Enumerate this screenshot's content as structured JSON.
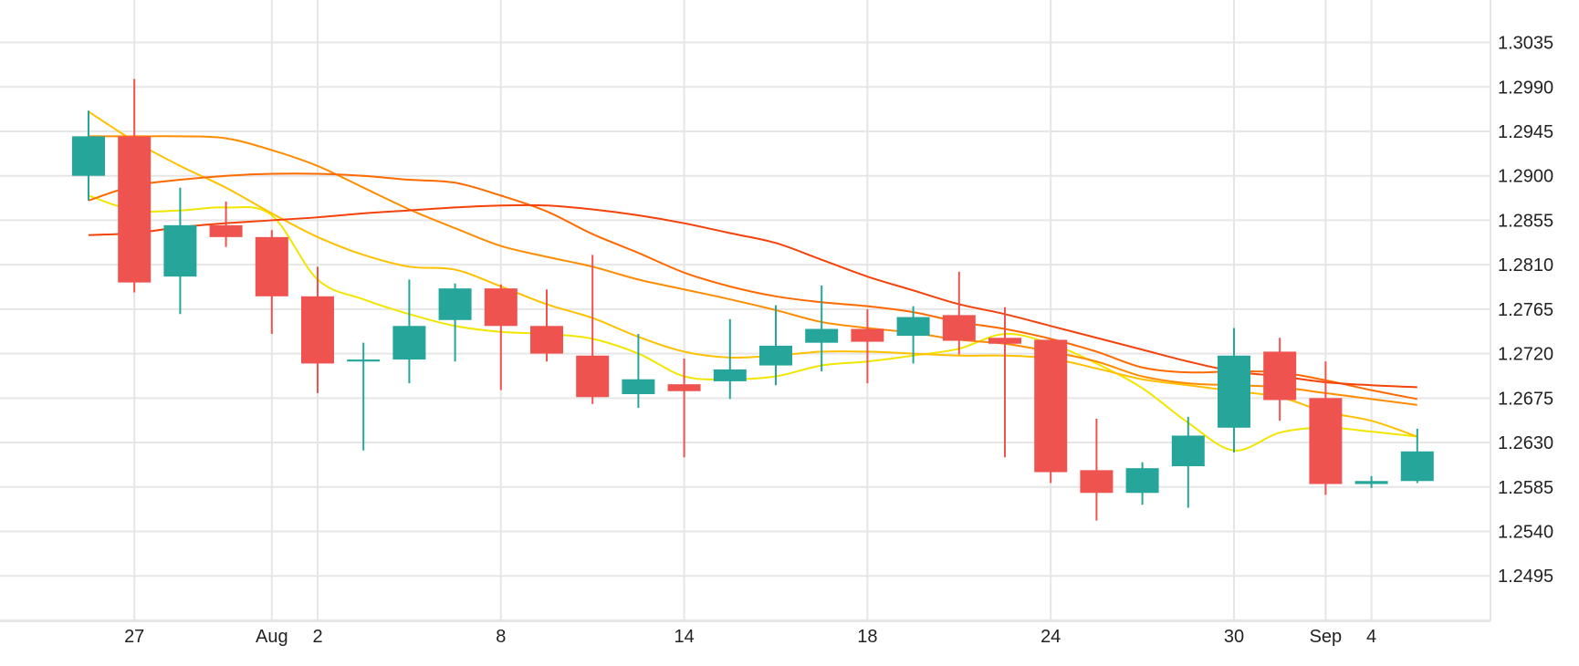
{
  "chart_data": {
    "type": "candlestick",
    "title": "",
    "xlabel": "",
    "ylabel": "",
    "ylim": [
      1.2449,
      1.3078
    ],
    "y_ticks": [
      "1.3035",
      "1.2990",
      "1.2945",
      "1.2900",
      "1.2855",
      "1.2810",
      "1.2765",
      "1.2720",
      "1.2675",
      "1.2630",
      "1.2585",
      "1.2540",
      "1.2495"
    ],
    "x_ticks": [
      {
        "index": 1,
        "label": "27"
      },
      {
        "index": 4,
        "label": "Aug"
      },
      {
        "index": 5,
        "label": "2"
      },
      {
        "index": 9,
        "label": "8"
      },
      {
        "index": 13,
        "label": "14"
      },
      {
        "index": 17,
        "label": "18"
      },
      {
        "index": 21,
        "label": "24"
      },
      {
        "index": 25,
        "label": "30"
      },
      {
        "index": 27,
        "label": "Sep"
      },
      {
        "index": 28,
        "label": "4"
      }
    ],
    "grid": true,
    "colors": {
      "up": "#26a69a",
      "down": "#ef5350"
    },
    "candles": [
      {
        "o": 1.29,
        "h": 1.2966,
        "l": 1.2875,
        "c": 1.294
      },
      {
        "o": 1.294,
        "h": 1.2998,
        "l": 1.2782,
        "c": 1.2792
      },
      {
        "o": 1.2798,
        "h": 1.2888,
        "l": 1.276,
        "c": 1.285
      },
      {
        "o": 1.285,
        "h": 1.2874,
        "l": 1.2828,
        "c": 1.2838
      },
      {
        "o": 1.2838,
        "h": 1.2845,
        "l": 1.274,
        "c": 1.2778
      },
      {
        "o": 1.2778,
        "h": 1.2808,
        "l": 1.268,
        "c": 1.271
      },
      {
        "o": 1.2712,
        "h": 1.2731,
        "l": 1.2622,
        "c": 1.2714
      },
      {
        "o": 1.2714,
        "h": 1.2795,
        "l": 1.269,
        "c": 1.2748
      },
      {
        "o": 1.2754,
        "h": 1.2791,
        "l": 1.2712,
        "c": 1.2786
      },
      {
        "o": 1.2786,
        "h": 1.279,
        "l": 1.2683,
        "c": 1.2748
      },
      {
        "o": 1.2748,
        "h": 1.2785,
        "l": 1.2712,
        "c": 1.272
      },
      {
        "o": 1.2718,
        "h": 1.282,
        "l": 1.2669,
        "c": 1.2676
      },
      {
        "o": 1.2679,
        "h": 1.274,
        "l": 1.2665,
        "c": 1.2694
      },
      {
        "o": 1.2689,
        "h": 1.2715,
        "l": 1.2615,
        "c": 1.2682
      },
      {
        "o": 1.2692,
        "h": 1.2755,
        "l": 1.2674,
        "c": 1.2704
      },
      {
        "o": 1.2708,
        "h": 1.2769,
        "l": 1.2688,
        "c": 1.2728
      },
      {
        "o": 1.2731,
        "h": 1.2789,
        "l": 1.2702,
        "c": 1.2745
      },
      {
        "o": 1.2745,
        "h": 1.2765,
        "l": 1.269,
        "c": 1.2732
      },
      {
        "o": 1.2738,
        "h": 1.2768,
        "l": 1.271,
        "c": 1.2757
      },
      {
        "o": 1.2759,
        "h": 1.2803,
        "l": 1.2719,
        "c": 1.2733
      },
      {
        "o": 1.2736,
        "h": 1.2767,
        "l": 1.2615,
        "c": 1.273
      },
      {
        "o": 1.2734,
        "h": 1.2734,
        "l": 1.2589,
        "c": 1.26
      },
      {
        "o": 1.2602,
        "h": 1.2654,
        "l": 1.2551,
        "c": 1.2579
      },
      {
        "o": 1.2579,
        "h": 1.261,
        "l": 1.2567,
        "c": 1.2604
      },
      {
        "o": 1.2606,
        "h": 1.2656,
        "l": 1.2564,
        "c": 1.2637
      },
      {
        "o": 1.2645,
        "h": 1.2746,
        "l": 1.262,
        "c": 1.2718
      },
      {
        "o": 1.2722,
        "h": 1.2736,
        "l": 1.2652,
        "c": 1.2673
      },
      {
        "o": 1.2675,
        "h": 1.2712,
        "l": 1.2577,
        "c": 1.2588
      },
      {
        "o": 1.2588,
        "h": 1.2596,
        "l": 1.2584,
        "c": 1.2591
      },
      {
        "o": 1.2591,
        "h": 1.2644,
        "l": 1.2589,
        "c": 1.2621
      }
    ],
    "series": [
      {
        "color": "#f2e600",
        "points": [
          [
            0,
            1.288
          ],
          [
            1,
            1.2865
          ],
          [
            2,
            1.2865
          ],
          [
            3,
            1.2868
          ],
          [
            4,
            1.286
          ],
          [
            5,
            1.2795
          ],
          [
            6,
            1.2775
          ],
          [
            7,
            1.276
          ],
          [
            8,
            1.2748
          ],
          [
            9,
            1.2742
          ],
          [
            10,
            1.274
          ],
          [
            11,
            1.2735
          ],
          [
            12,
            1.272
          ],
          [
            13,
            1.2697
          ],
          [
            14,
            1.2694
          ],
          [
            15,
            1.2697
          ],
          [
            16,
            1.2708
          ],
          [
            17,
            1.2712
          ],
          [
            18,
            1.2718
          ],
          [
            19,
            1.2725
          ],
          [
            20,
            1.274
          ],
          [
            21,
            1.273
          ],
          [
            22,
            1.271
          ],
          [
            23,
            1.2685
          ],
          [
            24,
            1.265
          ],
          [
            25,
            1.2622
          ],
          [
            26,
            1.264
          ],
          [
            27,
            1.2645
          ],
          [
            28,
            1.2641
          ],
          [
            29,
            1.2636
          ]
        ]
      },
      {
        "color": "#ffc000",
        "points": [
          [
            0,
            1.2965
          ],
          [
            1,
            1.2935
          ],
          [
            2,
            1.291
          ],
          [
            3,
            1.2888
          ],
          [
            4,
            1.2862
          ],
          [
            5,
            1.2838
          ],
          [
            6,
            1.282
          ],
          [
            7,
            1.2808
          ],
          [
            8,
            1.2805
          ],
          [
            9,
            1.2788
          ],
          [
            10,
            1.277
          ],
          [
            11,
            1.2756
          ],
          [
            12,
            1.2737
          ],
          [
            13,
            1.2722
          ],
          [
            14,
            1.2716
          ],
          [
            15,
            1.2718
          ],
          [
            16,
            1.2722
          ],
          [
            17,
            1.2722
          ],
          [
            18,
            1.272
          ],
          [
            19,
            1.2718
          ],
          [
            20,
            1.2718
          ],
          [
            21,
            1.2715
          ],
          [
            22,
            1.2705
          ],
          [
            23,
            1.2694
          ],
          [
            24,
            1.2688
          ],
          [
            25,
            1.2682
          ],
          [
            26,
            1.2676
          ],
          [
            27,
            1.2661
          ],
          [
            28,
            1.2652
          ],
          [
            29,
            1.2636
          ]
        ]
      },
      {
        "color": "#ff8c00",
        "points": [
          [
            0,
            1.294
          ],
          [
            1,
            1.294
          ],
          [
            2,
            1.294
          ],
          [
            3,
            1.2938
          ],
          [
            4,
            1.2926
          ],
          [
            5,
            1.291
          ],
          [
            6,
            1.2888
          ],
          [
            7,
            1.2866
          ],
          [
            8,
            1.2847
          ],
          [
            9,
            1.2829
          ],
          [
            10,
            1.2818
          ],
          [
            11,
            1.2808
          ],
          [
            12,
            1.2795
          ],
          [
            13,
            1.2785
          ],
          [
            14,
            1.2775
          ],
          [
            15,
            1.2764
          ],
          [
            16,
            1.2752
          ],
          [
            17,
            1.2746
          ],
          [
            18,
            1.2741
          ],
          [
            19,
            1.2734
          ],
          [
            20,
            1.273
          ],
          [
            21,
            1.2722
          ],
          [
            22,
            1.2712
          ],
          [
            23,
            1.2697
          ],
          [
            24,
            1.269
          ],
          [
            25,
            1.2688
          ],
          [
            26,
            1.2686
          ],
          [
            27,
            1.268
          ],
          [
            28,
            1.2674
          ],
          [
            29,
            1.2668
          ]
        ]
      },
      {
        "color": "#ff6a00",
        "points": [
          [
            0,
            1.2875
          ],
          [
            1,
            1.289
          ],
          [
            2,
            1.2896
          ],
          [
            3,
            1.29
          ],
          [
            4,
            1.2902
          ],
          [
            5,
            1.2902
          ],
          [
            6,
            1.29
          ],
          [
            7,
            1.2896
          ],
          [
            8,
            1.2893
          ],
          [
            9,
            1.288
          ],
          [
            10,
            1.2864
          ],
          [
            11,
            1.2841
          ],
          [
            12,
            1.2822
          ],
          [
            13,
            1.2802
          ],
          [
            14,
            1.2788
          ],
          [
            15,
            1.2778
          ],
          [
            16,
            1.2772
          ],
          [
            17,
            1.2768
          ],
          [
            18,
            1.2762
          ],
          [
            19,
            1.2752
          ],
          [
            20,
            1.2745
          ],
          [
            21,
            1.2735
          ],
          [
            22,
            1.2722
          ],
          [
            23,
            1.2706
          ],
          [
            24,
            1.2701
          ],
          [
            25,
            1.2702
          ],
          [
            26,
            1.2701
          ],
          [
            27,
            1.2693
          ],
          [
            28,
            1.2683
          ],
          [
            29,
            1.2674
          ]
        ]
      },
      {
        "color": "#f5420a",
        "points": [
          [
            0,
            1.284
          ],
          [
            1,
            1.2842
          ],
          [
            2,
            1.2848
          ],
          [
            3,
            1.2852
          ],
          [
            4,
            1.2855
          ],
          [
            5,
            1.2858
          ],
          [
            6,
            1.2862
          ],
          [
            7,
            1.2865
          ],
          [
            8,
            1.2868
          ],
          [
            9,
            1.287
          ],
          [
            10,
            1.287
          ],
          [
            11,
            1.2866
          ],
          [
            12,
            1.286
          ],
          [
            13,
            1.2852
          ],
          [
            14,
            1.2842
          ],
          [
            15,
            1.2832
          ],
          [
            16,
            1.2815
          ],
          [
            17,
            1.2798
          ],
          [
            18,
            1.2784
          ],
          [
            19,
            1.277
          ],
          [
            20,
            1.276
          ],
          [
            21,
            1.2748
          ],
          [
            22,
            1.2736
          ],
          [
            23,
            1.2724
          ],
          [
            24,
            1.2712
          ],
          [
            25,
            1.2702
          ],
          [
            26,
            1.2697
          ],
          [
            27,
            1.2691
          ],
          [
            28,
            1.2688
          ],
          [
            29,
            1.2686
          ]
        ]
      }
    ]
  }
}
